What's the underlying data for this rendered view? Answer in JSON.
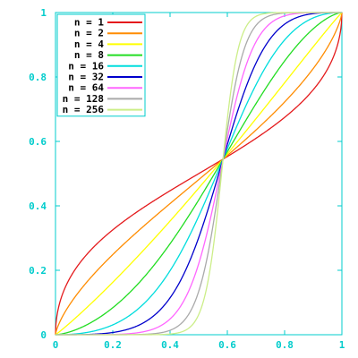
{
  "chart_data": {
    "type": "line",
    "title": "",
    "xlabel": "",
    "ylabel": "",
    "xlim": [
      0,
      1
    ],
    "ylim": [
      0,
      1
    ],
    "grid": false,
    "legend_placement": "top-left",
    "x_ticks": [
      "0",
      "0.2",
      "0.4",
      "0.6",
      "0.8",
      "1"
    ],
    "y_ticks": [
      "0",
      "0.2",
      "0.4",
      "0.6",
      "0.8",
      "1"
    ],
    "crossing_point": [
      0.585,
      0.545
    ],
    "series": [
      {
        "name": "n = 1",
        "n": 1,
        "color": "#e41a1c"
      },
      {
        "name": "n = 2",
        "n": 2,
        "color": "#ff8c00"
      },
      {
        "name": "n = 4",
        "n": 4,
        "color": "#ffff00"
      },
      {
        "name": "n = 8",
        "n": 8,
        "color": "#22dd22"
      },
      {
        "name": "n = 16",
        "n": 16,
        "color": "#00dddd"
      },
      {
        "name": "n = 32",
        "n": 32,
        "color": "#0000cc"
      },
      {
        "name": "n = 64",
        "n": 64,
        "color": "#ff66ff"
      },
      {
        "name": "n = 128",
        "n": 128,
        "color": "#aaaaaa"
      },
      {
        "name": "n = 256",
        "n": 256,
        "color": "#ccee88"
      }
    ]
  },
  "style": {
    "axis_color": "#00cccc",
    "tick_label_color": "#00cccc",
    "legend_text_color": "#000000"
  }
}
